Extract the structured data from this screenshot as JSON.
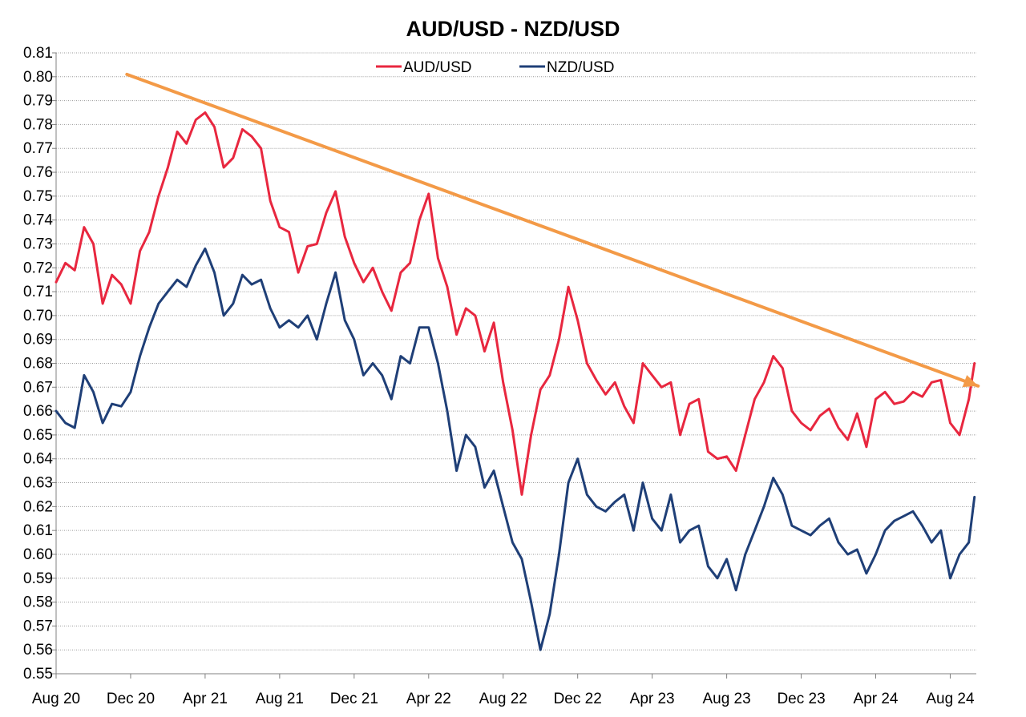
{
  "chart_data": {
    "type": "line",
    "title": "AUD/USD - NZD/USD",
    "xlabel": "",
    "ylabel": "",
    "ylim": [
      0.55,
      0.81
    ],
    "y_ticks": [
      "0.55",
      "0.56",
      "0.57",
      "0.58",
      "0.59",
      "0.60",
      "0.61",
      "0.62",
      "0.63",
      "0.64",
      "0.65",
      "0.66",
      "0.67",
      "0.68",
      "0.69",
      "0.70",
      "0.71",
      "0.72",
      "0.73",
      "0.74",
      "0.75",
      "0.76",
      "0.77",
      "0.78",
      "0.79",
      "0.80",
      "0.81"
    ],
    "x_tick_labels": [
      "Aug 20",
      "Dec 20",
      "Apr 21",
      "Aug 21",
      "Dec 21",
      "Apr 22",
      "Aug 22",
      "Dec 22",
      "Apr 23",
      "Aug 23",
      "Dec 23",
      "Apr 24",
      "Aug 24"
    ],
    "x_range": [
      0,
      49.4
    ],
    "x_unit": "months since Aug 20",
    "grid": true,
    "legend_position": "top-center",
    "series": [
      {
        "name": "AUD/USD",
        "color": "#e8273f",
        "x": [
          0,
          0.5,
          1,
          1.5,
          2,
          2.5,
          3,
          3.5,
          4,
          4.5,
          5,
          5.5,
          6,
          6.5,
          7,
          7.5,
          8,
          8.5,
          9,
          9.5,
          10,
          10.5,
          11,
          11.5,
          12,
          12.5,
          13,
          13.5,
          14,
          14.5,
          15,
          15.5,
          16,
          16.5,
          17,
          17.5,
          18,
          18.5,
          19,
          19.5,
          20,
          20.5,
          21,
          21.5,
          22,
          22.5,
          23,
          23.5,
          24,
          24.5,
          25,
          25.5,
          26,
          26.5,
          27,
          27.5,
          28,
          28.5,
          29,
          29.5,
          30,
          30.5,
          31,
          31.5,
          32,
          32.5,
          33,
          33.5,
          34,
          34.5,
          35,
          35.5,
          36,
          36.5,
          37,
          37.5,
          38,
          38.5,
          39,
          39.5,
          40,
          40.5,
          41,
          41.5,
          42,
          42.5,
          43,
          43.5,
          44,
          44.5,
          45,
          45.5,
          46,
          46.5,
          47,
          47.5,
          48,
          48.5,
          49,
          49.3
        ],
        "values": [
          0.714,
          0.722,
          0.719,
          0.737,
          0.73,
          0.705,
          0.717,
          0.713,
          0.705,
          0.727,
          0.735,
          0.75,
          0.762,
          0.777,
          0.772,
          0.782,
          0.785,
          0.779,
          0.762,
          0.766,
          0.778,
          0.775,
          0.77,
          0.748,
          0.737,
          0.735,
          0.718,
          0.729,
          0.73,
          0.743,
          0.752,
          0.733,
          0.722,
          0.714,
          0.72,
          0.71,
          0.702,
          0.718,
          0.722,
          0.74,
          0.751,
          0.724,
          0.712,
          0.692,
          0.703,
          0.7,
          0.685,
          0.697,
          0.672,
          0.652,
          0.625,
          0.65,
          0.669,
          0.675,
          0.69,
          0.712,
          0.698,
          0.68,
          0.673,
          0.667,
          0.672,
          0.662,
          0.655,
          0.68,
          0.675,
          0.67,
          0.672,
          0.65,
          0.663,
          0.665,
          0.643,
          0.64,
          0.641,
          0.635,
          0.65,
          0.665,
          0.672,
          0.683,
          0.678,
          0.66,
          0.655,
          0.652,
          0.658,
          0.661,
          0.653,
          0.648,
          0.659,
          0.645,
          0.665,
          0.668,
          0.663,
          0.664,
          0.668,
          0.666,
          0.672,
          0.673,
          0.655,
          0.65,
          0.665,
          0.68
        ]
      },
      {
        "name": "NZD/USD",
        "color": "#1f3f77",
        "x": [
          0,
          0.5,
          1,
          1.5,
          2,
          2.5,
          3,
          3.5,
          4,
          4.5,
          5,
          5.5,
          6,
          6.5,
          7,
          7.5,
          8,
          8.5,
          9,
          9.5,
          10,
          10.5,
          11,
          11.5,
          12,
          12.5,
          13,
          13.5,
          14,
          14.5,
          15,
          15.5,
          16,
          16.5,
          17,
          17.5,
          18,
          18.5,
          19,
          19.5,
          20,
          20.5,
          21,
          21.5,
          22,
          22.5,
          23,
          23.5,
          24,
          24.5,
          25,
          25.5,
          26,
          26.5,
          27,
          27.5,
          28,
          28.5,
          29,
          29.5,
          30,
          30.5,
          31,
          31.5,
          32,
          32.5,
          33,
          33.5,
          34,
          34.5,
          35,
          35.5,
          36,
          36.5,
          37,
          37.5,
          38,
          38.5,
          39,
          39.5,
          40,
          40.5,
          41,
          41.5,
          42,
          42.5,
          43,
          43.5,
          44,
          44.5,
          45,
          45.5,
          46,
          46.5,
          47,
          47.5,
          48,
          48.5,
          49,
          49.3
        ],
        "values": [
          0.66,
          0.655,
          0.653,
          0.675,
          0.668,
          0.655,
          0.663,
          0.662,
          0.668,
          0.683,
          0.695,
          0.705,
          0.71,
          0.715,
          0.712,
          0.721,
          0.728,
          0.718,
          0.7,
          0.705,
          0.717,
          0.713,
          0.715,
          0.703,
          0.695,
          0.698,
          0.695,
          0.7,
          0.69,
          0.705,
          0.718,
          0.698,
          0.69,
          0.675,
          0.68,
          0.675,
          0.665,
          0.683,
          0.68,
          0.695,
          0.695,
          0.68,
          0.66,
          0.635,
          0.65,
          0.645,
          0.628,
          0.635,
          0.62,
          0.605,
          0.598,
          0.58,
          0.56,
          0.575,
          0.6,
          0.63,
          0.64,
          0.625,
          0.62,
          0.618,
          0.622,
          0.625,
          0.61,
          0.63,
          0.615,
          0.61,
          0.625,
          0.605,
          0.61,
          0.612,
          0.595,
          0.59,
          0.598,
          0.585,
          0.6,
          0.61,
          0.62,
          0.632,
          0.625,
          0.612,
          0.61,
          0.608,
          0.612,
          0.615,
          0.605,
          0.6,
          0.602,
          0.592,
          0.6,
          0.61,
          0.614,
          0.616,
          0.618,
          0.612,
          0.605,
          0.61,
          0.59,
          0.6,
          0.605,
          0.624
        ]
      }
    ],
    "trendline": {
      "color": "#f39a47",
      "x": [
        3.8,
        49.5
      ],
      "y": [
        0.801,
        0.6705
      ]
    }
  }
}
